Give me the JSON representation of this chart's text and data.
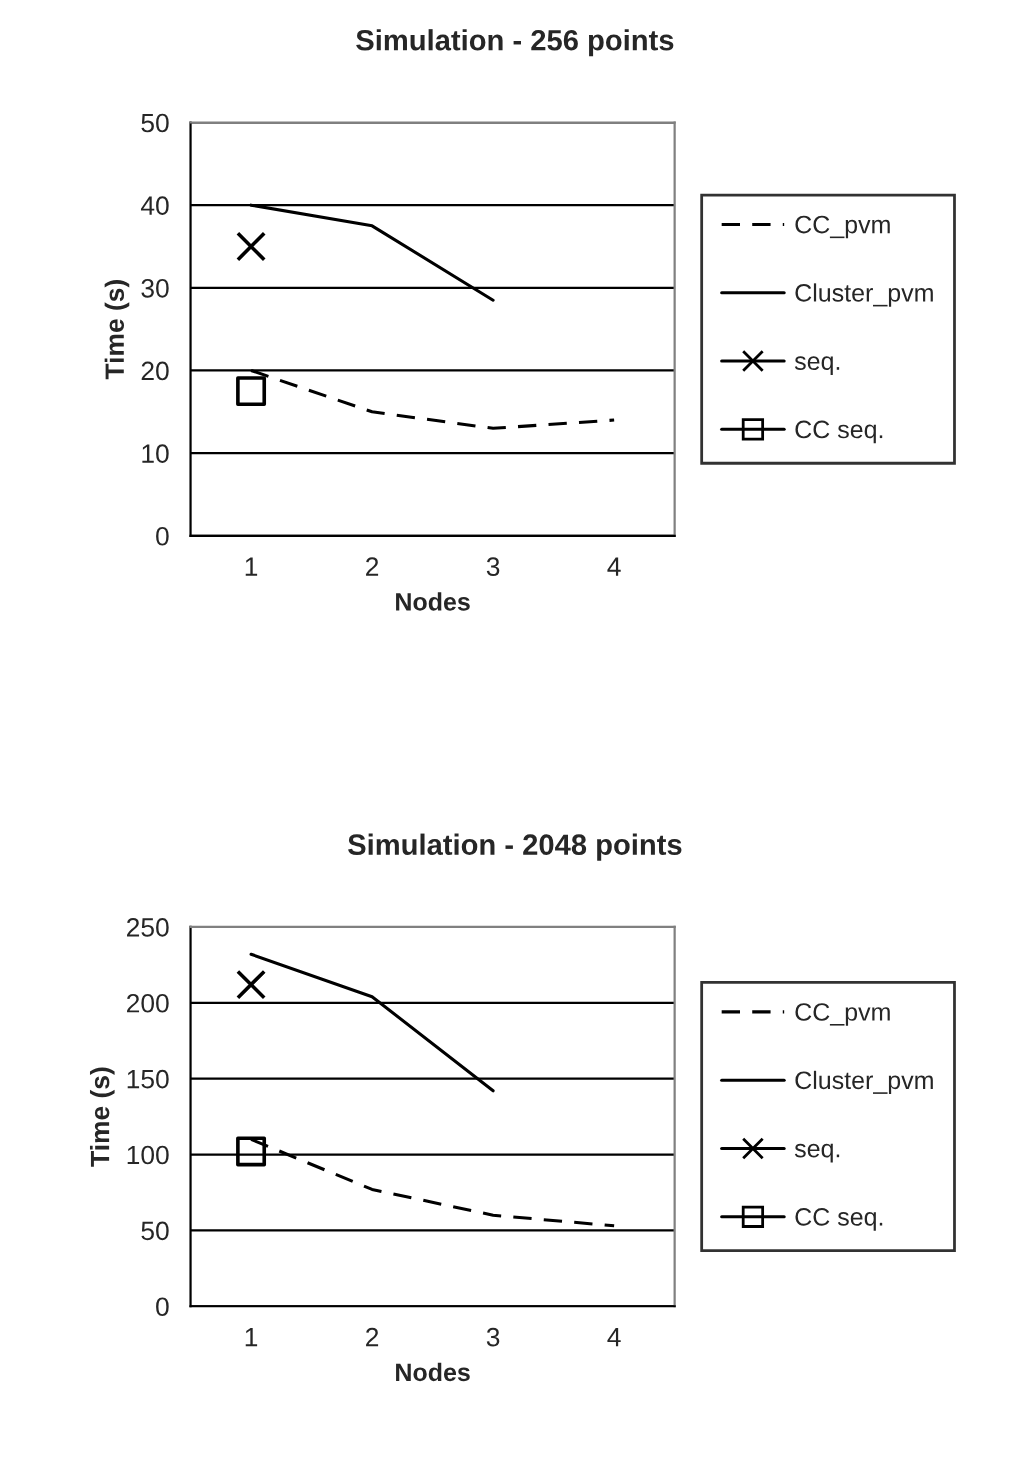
{
  "chart_data": [
    {
      "type": "line",
      "title": "Simulation - 256 points",
      "xlabel": "Nodes",
      "ylabel": "Time (s)",
      "categories": [
        "1",
        "2",
        "3",
        "4"
      ],
      "ylim": [
        0,
        50
      ],
      "yticks": [
        0,
        10,
        20,
        30,
        40,
        50
      ],
      "grid": "y",
      "legend": "right",
      "series": [
        {
          "name": "CC_pvm",
          "color": "#000000",
          "line_style": "dashed",
          "marker": "none",
          "values": [
            20,
            15,
            13,
            14
          ]
        },
        {
          "name": "Cluster_pvm",
          "color": "#000000",
          "line_style": "solid",
          "marker": "none",
          "values": [
            40,
            37.5,
            28.5,
            null
          ]
        },
        {
          "name": "seq.",
          "type": "scatter",
          "color": "#000000",
          "marker": "cross",
          "values": [
            35,
            null,
            null,
            null
          ]
        },
        {
          "name": "CC seq.",
          "type": "scatter",
          "color": "#000000",
          "marker": "square",
          "values": [
            17.5,
            null,
            null,
            null
          ]
        }
      ]
    },
    {
      "type": "line",
      "title": "Simulation - 2048 points",
      "xlabel": "Nodes",
      "ylabel": "Time (s)",
      "categories": [
        "1",
        "2",
        "3",
        "4"
      ],
      "ylim": [
        0,
        250
      ],
      "yticks": [
        0,
        50,
        100,
        150,
        200,
        250
      ],
      "grid": "y",
      "legend": "right",
      "series": [
        {
          "name": "CC_pvm",
          "color": "#000000",
          "line_style": "dashed",
          "marker": "none",
          "values": [
            110,
            77,
            60,
            53
          ]
        },
        {
          "name": "Cluster_pvm",
          "color": "#000000",
          "line_style": "solid",
          "marker": "none",
          "values": [
            232,
            204,
            142,
            null
          ]
        },
        {
          "name": "seq.",
          "type": "scatter",
          "color": "#000000",
          "marker": "cross",
          "values": [
            212,
            null,
            null,
            null
          ]
        },
        {
          "name": "CC seq.",
          "type": "scatter",
          "color": "#000000",
          "marker": "square",
          "values": [
            102,
            null,
            null,
            null
          ]
        }
      ]
    }
  ]
}
